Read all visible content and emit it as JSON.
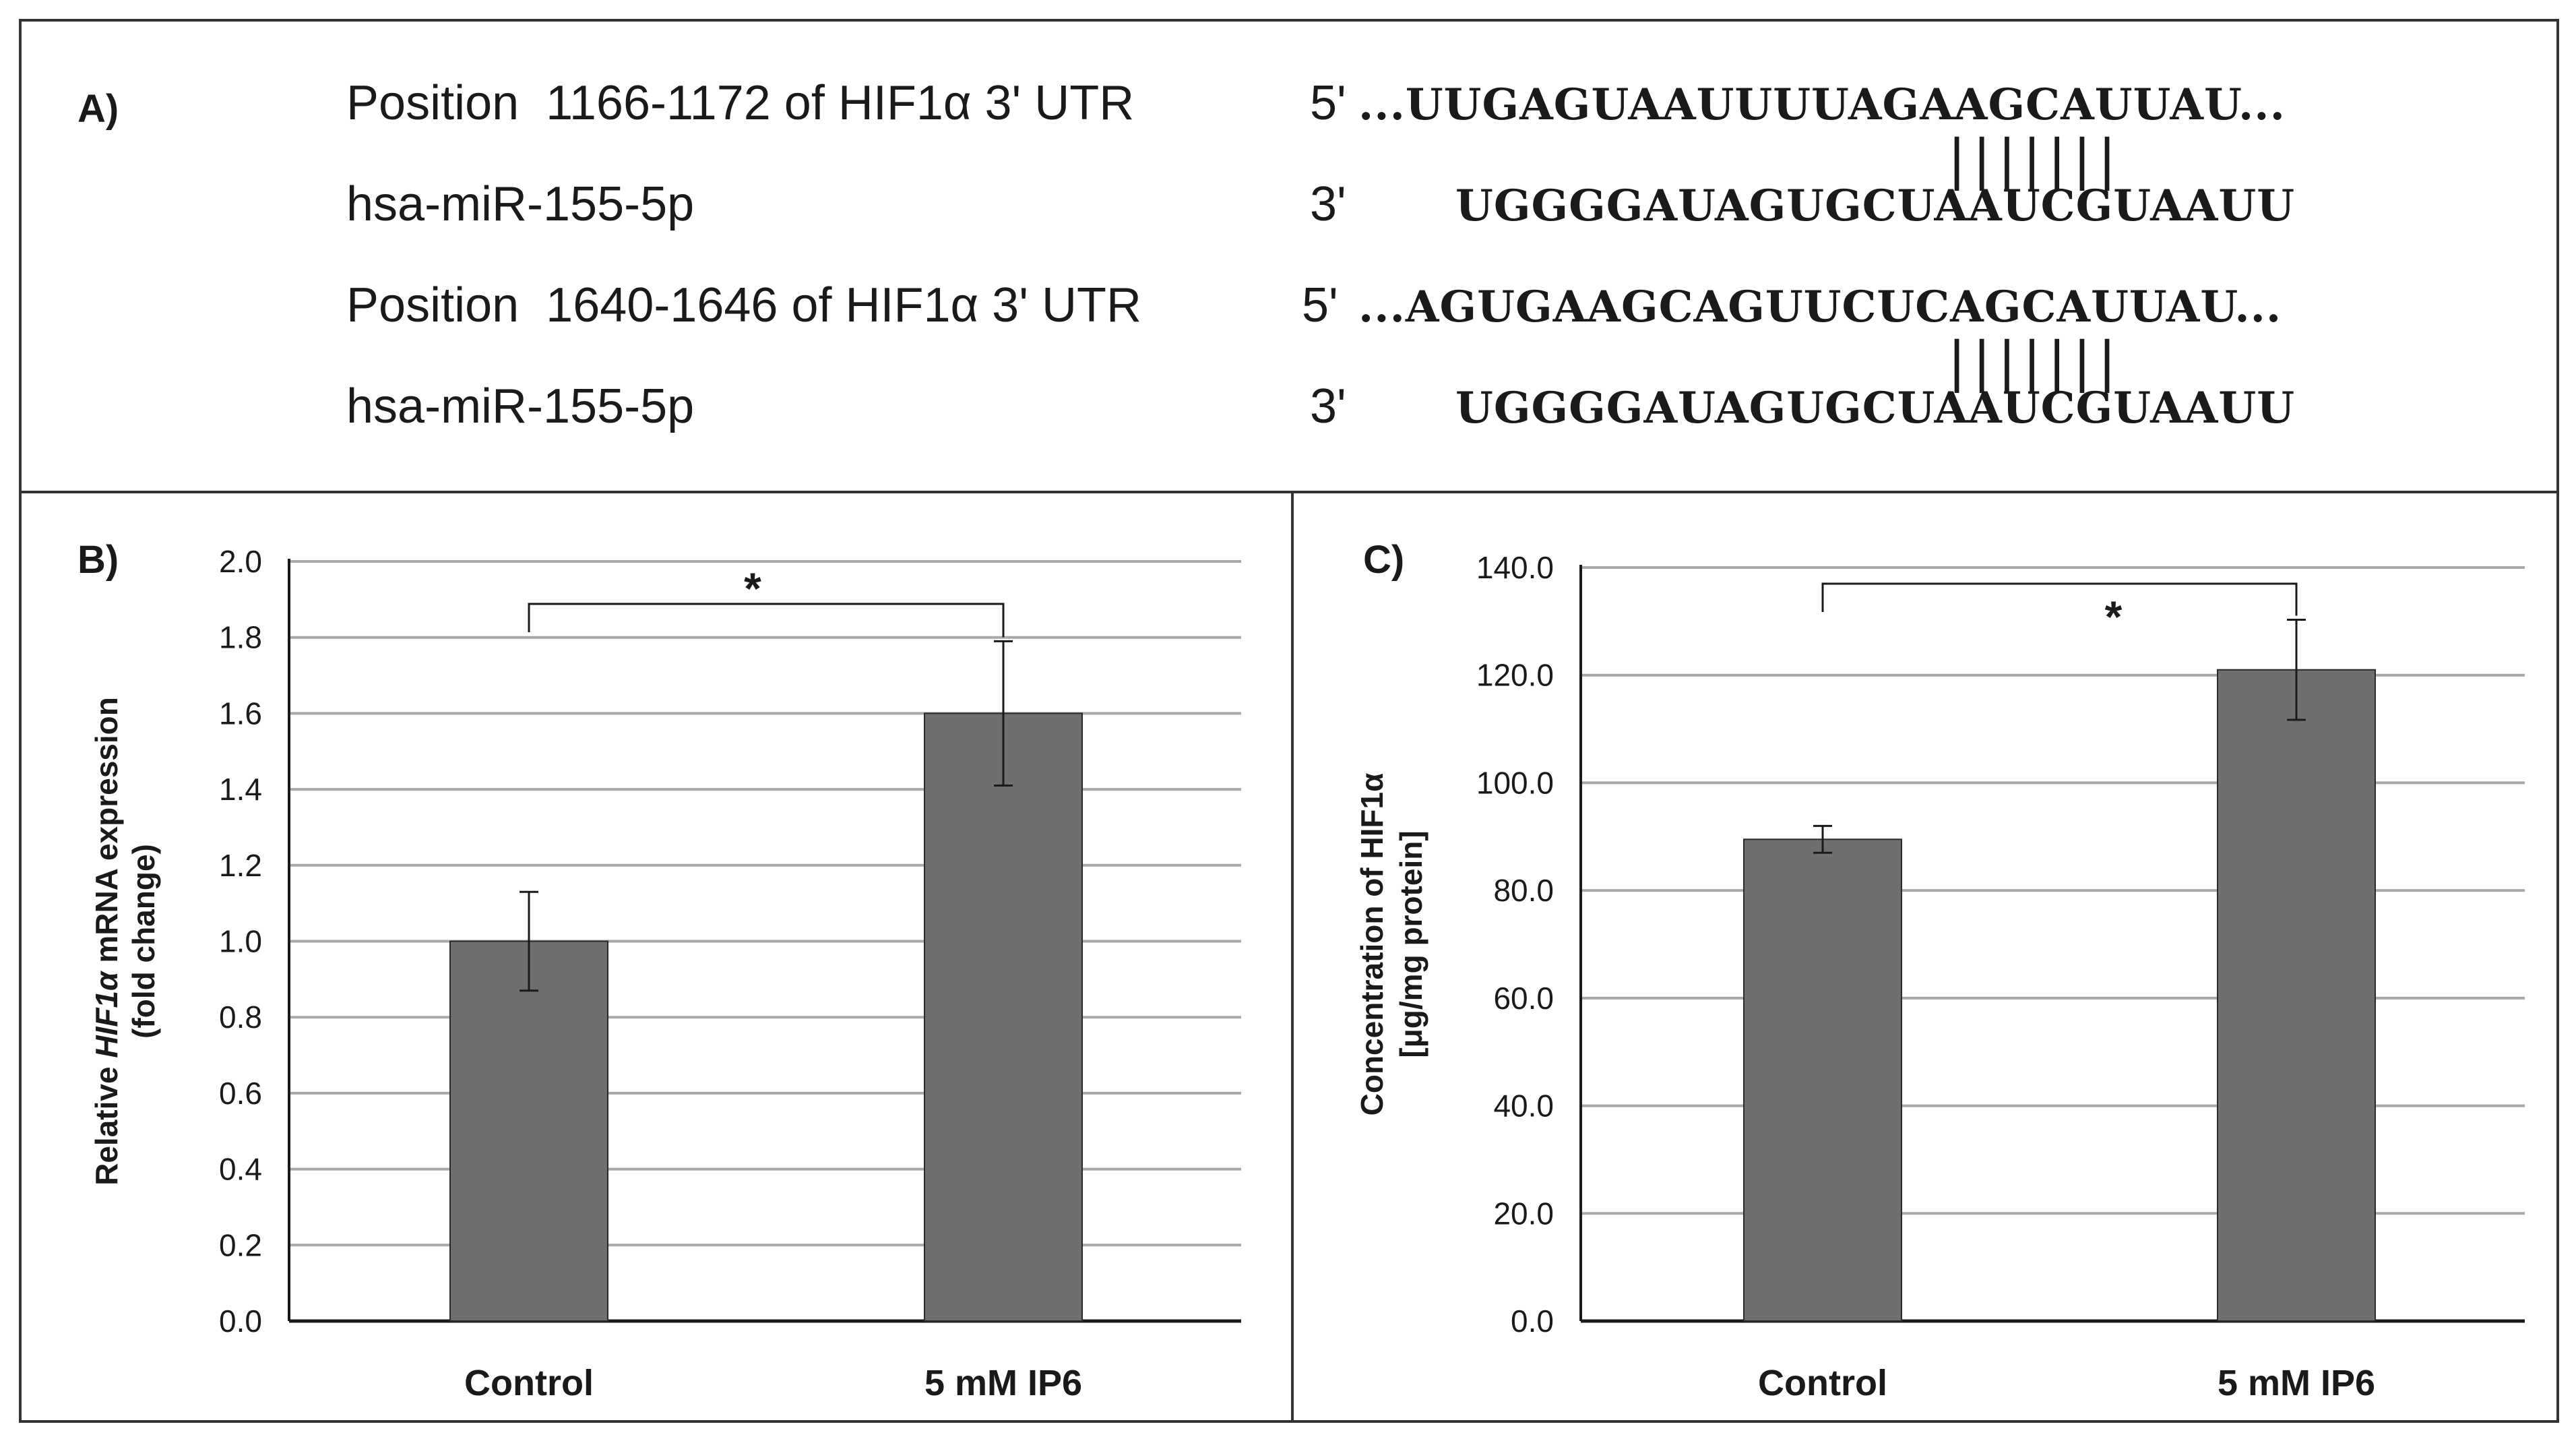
{
  "panel_a": {
    "letter": "A)",
    "rows": [
      {
        "label": "Position  1166-1172 of HIF1α 3' UTR",
        "prime": "5'",
        "sequence": "...UUGAGUAAUUUUAGAAGCAUUAU...",
        "pairing": "|||||||"
      },
      {
        "label": "hsa-miR-155-5p",
        "prime": "3'",
        "sequence": "UGGGGAUAGUGCUAAUCGUAAUU"
      },
      {
        "label": "Position  1640-1646 of HIF1α 3' UTR",
        "prime": "5'",
        "sequence": "...AGUGAAGCAGUUCUCAGCAUUAU...",
        "pairing": "|||||||"
      },
      {
        "label": "hsa-miR-155-5p",
        "prime": "3'",
        "sequence": "UGGGGAUAGUGCUAAUCGUAAUU"
      }
    ]
  },
  "chart_data": [
    {
      "panel": "B)",
      "type": "bar",
      "categories": [
        "Control",
        "5 mM IP6"
      ],
      "values": [
        1.0,
        1.6
      ],
      "errors": [
        0.13,
        0.19
      ],
      "ylabel_prefix": "Relative ",
      "ylabel_italic": "HIF1α",
      "ylabel_suffix": " mRNA expression",
      "ylabel_line2": "(fold change)",
      "ylim": [
        0,
        2.0
      ],
      "ytick_step": 0.2,
      "ytick_decimals": 1,
      "grid": true,
      "bar_color": "#6d706f",
      "significance": "*"
    },
    {
      "panel": "C)",
      "type": "bar",
      "categories": [
        "Control",
        "5 mM IP6"
      ],
      "values": [
        89.5,
        121.0
      ],
      "errors": [
        2.5,
        9.3
      ],
      "ylabel_line1": "Concentration  of HIF1α",
      "ylabel_line2": "[μg/mg protein]",
      "ylim": [
        0,
        140
      ],
      "ytick_step": 20,
      "ytick_decimals": 1,
      "grid": true,
      "bar_color": "#6d706f",
      "significance": "*"
    }
  ]
}
